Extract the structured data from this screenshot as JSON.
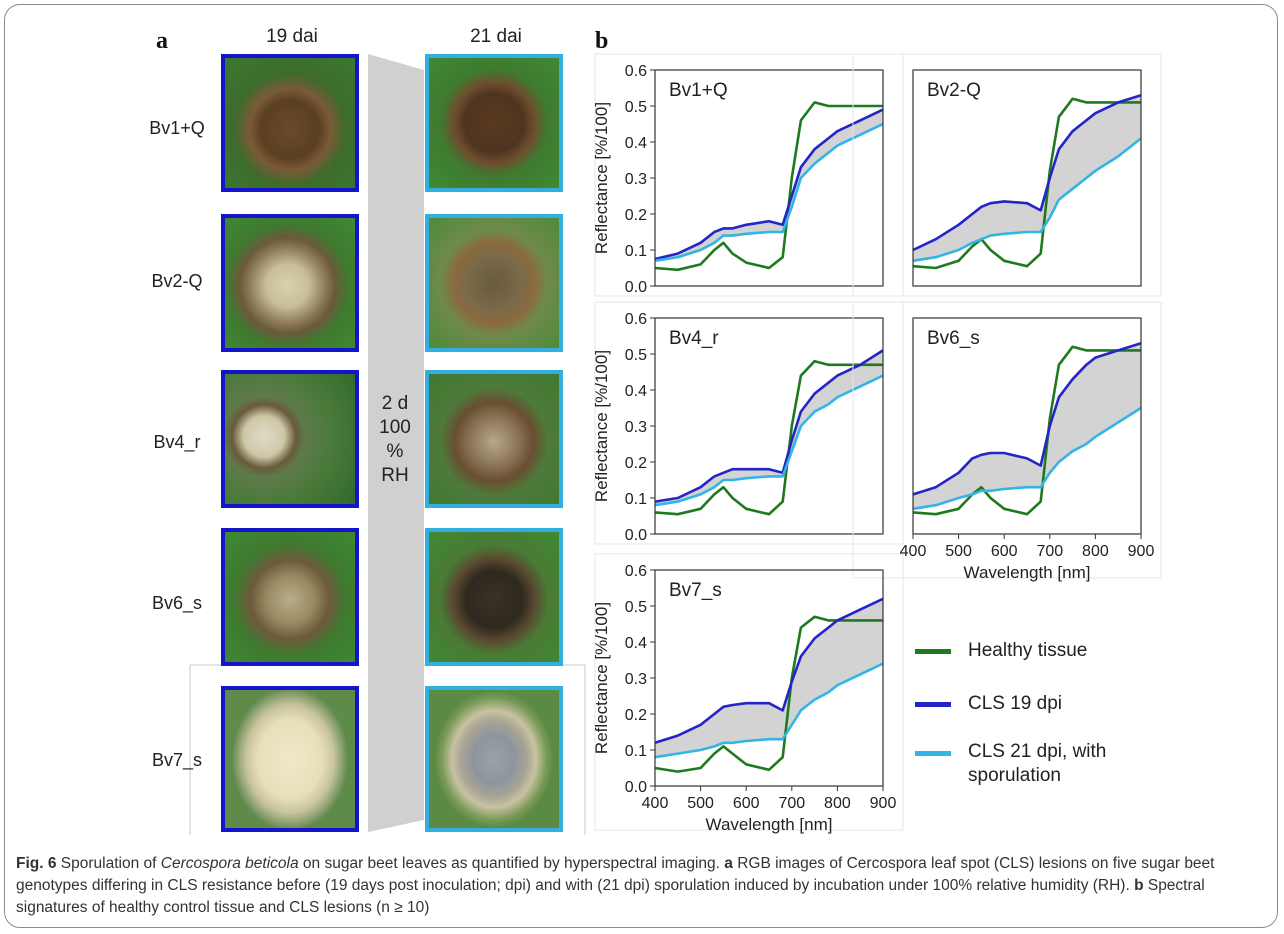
{
  "panel_a": {
    "letter": "a",
    "col_19": "19 dai",
    "col_21": "21 dai",
    "rows": [
      "Bv1+Q",
      "Bv2-Q",
      "Bv4_r",
      "Bv6_s",
      "Bv7_s"
    ],
    "band_text": [
      "2 d",
      "100",
      "%",
      "RH"
    ]
  },
  "panel_b": {
    "letter": "b",
    "ylabel": "Reflectance  [%/100]",
    "xlabel": "Wavelength [nm]",
    "legend": [
      {
        "label": "Healthy tissue",
        "color": "#1f7a1f"
      },
      {
        "label": "CLS  19 dpi",
        "color": "#2424c8"
      },
      {
        "label_lines": [
          "CLS  21 dpi, with",
          "sporulation"
        ],
        "color": "#33b4e6"
      }
    ]
  },
  "colors": {
    "healthy": "#1f7a1f",
    "cls19": "#2424c8",
    "cls21": "#33b4e6",
    "fill": "#d3d3d3",
    "border19": "#1414cc",
    "border21": "#33aee0"
  },
  "chart_data": [
    {
      "type": "line",
      "title": "Bv1+Q",
      "xlim": [
        400,
        900
      ],
      "ylim": [
        0,
        0.6
      ],
      "yticks": [
        0.0,
        0.1,
        0.2,
        0.3,
        0.4,
        0.5,
        0.6
      ],
      "xticks": [],
      "x": [
        400,
        450,
        500,
        530,
        550,
        570,
        600,
        650,
        680,
        700,
        720,
        750,
        780,
        800,
        850,
        900
      ],
      "series": [
        {
          "name": "Healthy tissue",
          "values": [
            0.05,
            0.045,
            0.06,
            0.1,
            0.12,
            0.09,
            0.065,
            0.05,
            0.08,
            0.3,
            0.46,
            0.51,
            0.5,
            0.5,
            0.5,
            0.5
          ]
        },
        {
          "name": "CLS  19 dpi",
          "values": [
            0.075,
            0.09,
            0.12,
            0.15,
            0.16,
            0.16,
            0.17,
            0.18,
            0.17,
            0.25,
            0.33,
            0.38,
            0.41,
            0.43,
            0.46,
            0.49
          ]
        },
        {
          "name": "CLS  21 dpi, with sporulation",
          "values": [
            0.07,
            0.08,
            0.1,
            0.12,
            0.14,
            0.14,
            0.145,
            0.15,
            0.15,
            0.22,
            0.3,
            0.34,
            0.37,
            0.39,
            0.42,
            0.45
          ]
        }
      ]
    },
    {
      "type": "line",
      "title": "Bv2-Q",
      "xlim": [
        400,
        900
      ],
      "ylim": [
        0,
        0.6
      ],
      "yticks": [],
      "xticks": [],
      "x": [
        400,
        450,
        500,
        530,
        550,
        570,
        600,
        650,
        680,
        700,
        720,
        750,
        780,
        800,
        850,
        900
      ],
      "series": [
        {
          "name": "Healthy tissue",
          "values": [
            0.055,
            0.05,
            0.07,
            0.11,
            0.13,
            0.1,
            0.07,
            0.055,
            0.09,
            0.32,
            0.47,
            0.52,
            0.51,
            0.51,
            0.51,
            0.51
          ]
        },
        {
          "name": "CLS  19 dpi",
          "values": [
            0.1,
            0.13,
            0.17,
            0.2,
            0.22,
            0.23,
            0.235,
            0.23,
            0.21,
            0.3,
            0.38,
            0.43,
            0.46,
            0.48,
            0.51,
            0.53
          ]
        },
        {
          "name": "CLS  21 dpi, with sporulation",
          "values": [
            0.07,
            0.08,
            0.1,
            0.12,
            0.13,
            0.14,
            0.145,
            0.15,
            0.15,
            0.19,
            0.24,
            0.27,
            0.3,
            0.32,
            0.36,
            0.41
          ]
        }
      ]
    },
    {
      "type": "line",
      "title": "Bv4_r",
      "xlim": [
        400,
        900
      ],
      "ylim": [
        0,
        0.6
      ],
      "yticks": [
        0.0,
        0.1,
        0.2,
        0.3,
        0.4,
        0.5,
        0.6
      ],
      "xticks": [],
      "x": [
        400,
        450,
        500,
        530,
        550,
        570,
        600,
        650,
        680,
        700,
        720,
        750,
        780,
        800,
        850,
        900
      ],
      "series": [
        {
          "name": "Healthy tissue",
          "values": [
            0.06,
            0.055,
            0.07,
            0.11,
            0.13,
            0.1,
            0.07,
            0.055,
            0.09,
            0.3,
            0.44,
            0.48,
            0.47,
            0.47,
            0.47,
            0.47
          ]
        },
        {
          "name": "CLS  19 dpi",
          "values": [
            0.09,
            0.1,
            0.13,
            0.16,
            0.17,
            0.18,
            0.18,
            0.18,
            0.17,
            0.26,
            0.34,
            0.39,
            0.42,
            0.44,
            0.47,
            0.51
          ]
        },
        {
          "name": "CLS  21 dpi, with sporulation",
          "values": [
            0.08,
            0.09,
            0.11,
            0.13,
            0.15,
            0.15,
            0.155,
            0.16,
            0.16,
            0.23,
            0.3,
            0.34,
            0.36,
            0.38,
            0.41,
            0.44
          ]
        }
      ]
    },
    {
      "type": "line",
      "title": "Bv6_s",
      "xlim": [
        400,
        900
      ],
      "ylim": [
        0,
        0.6
      ],
      "yticks": [],
      "xticks": [
        400,
        500,
        600,
        700,
        800,
        900
      ],
      "xlabel": "Wavelength [nm]",
      "x": [
        400,
        450,
        500,
        530,
        550,
        570,
        600,
        650,
        680,
        700,
        720,
        750,
        780,
        800,
        850,
        900
      ],
      "series": [
        {
          "name": "Healthy tissue",
          "values": [
            0.06,
            0.055,
            0.07,
            0.11,
            0.13,
            0.1,
            0.07,
            0.055,
            0.09,
            0.32,
            0.47,
            0.52,
            0.51,
            0.51,
            0.51,
            0.51
          ]
        },
        {
          "name": "CLS  19 dpi",
          "values": [
            0.11,
            0.13,
            0.17,
            0.21,
            0.22,
            0.225,
            0.225,
            0.21,
            0.19,
            0.3,
            0.38,
            0.43,
            0.47,
            0.49,
            0.51,
            0.53
          ]
        },
        {
          "name": "CLS  21 dpi, with sporulation",
          "values": [
            0.07,
            0.08,
            0.1,
            0.11,
            0.12,
            0.12,
            0.125,
            0.13,
            0.13,
            0.17,
            0.2,
            0.23,
            0.25,
            0.27,
            0.31,
            0.35
          ]
        }
      ]
    },
    {
      "type": "line",
      "title": "Bv7_s",
      "xlim": [
        400,
        900
      ],
      "ylim": [
        0,
        0.6
      ],
      "yticks": [
        0.0,
        0.1,
        0.2,
        0.3,
        0.4,
        0.5,
        0.6
      ],
      "xticks": [
        400,
        500,
        600,
        700,
        800,
        900
      ],
      "xlabel": "Wavelength [nm]",
      "x": [
        400,
        450,
        500,
        530,
        550,
        570,
        600,
        650,
        680,
        700,
        720,
        750,
        780,
        800,
        850,
        900
      ],
      "series": [
        {
          "name": "Healthy tissue",
          "values": [
            0.05,
            0.04,
            0.05,
            0.09,
            0.11,
            0.09,
            0.06,
            0.045,
            0.08,
            0.3,
            0.44,
            0.47,
            0.46,
            0.46,
            0.46,
            0.46
          ]
        },
        {
          "name": "CLS  19 dpi",
          "values": [
            0.12,
            0.14,
            0.17,
            0.2,
            0.22,
            0.225,
            0.23,
            0.23,
            0.21,
            0.29,
            0.36,
            0.41,
            0.44,
            0.46,
            0.49,
            0.52
          ]
        },
        {
          "name": "CLS  21 dpi, with sporulation",
          "values": [
            0.08,
            0.09,
            0.1,
            0.11,
            0.12,
            0.12,
            0.125,
            0.13,
            0.13,
            0.17,
            0.21,
            0.24,
            0.26,
            0.28,
            0.31,
            0.34
          ]
        }
      ]
    }
  ],
  "caption": {
    "fig": "Fig. 6",
    "p1": "  Sporulation of ",
    "species": "Cercospora beticola",
    "p2": " on sugar beet leaves as quantified by hyperspectral imaging. ",
    "a": "a",
    "p3": " RGB images of Cercospora leaf spot (CLS) lesions on five sugar beet genotypes differing in CLS resistance before (19 days post inoculation; dpi) and with (21 dpi) sporulation induced by incubation under 100% relative humidity (RH). ",
    "b": "b",
    "p4": " Spectral signatures of healthy control tissue and CLS lesions (n ≥ 10)"
  }
}
